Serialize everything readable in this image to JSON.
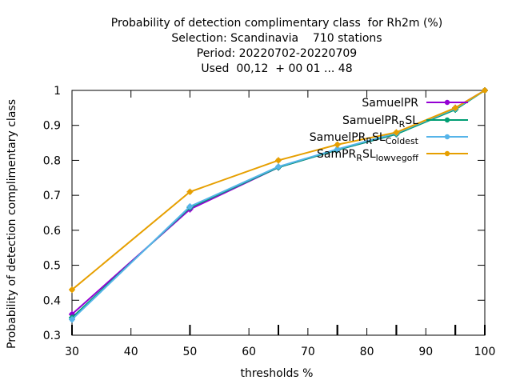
{
  "chart_data": {
    "type": "line",
    "title_lines": [
      "Probability of detection complimentary class  for Rh2m (%)",
      "Selection: Scandinavia    710 stations",
      "Period: 20220702-20220709",
      "Used  00,12  + 00 01 ... 48"
    ],
    "xlabel": "thresholds %",
    "ylabel": "Probability of detection complimentary class",
    "xlim": [
      30,
      100
    ],
    "ylim": [
      0.3,
      1.0
    ],
    "x_ticks": [
      30,
      40,
      50,
      60,
      70,
      80,
      90,
      100
    ],
    "y_ticks": [
      0.3,
      0.4,
      0.5,
      0.6,
      0.7,
      0.8,
      0.9,
      1.0
    ],
    "x_tick_labels": [
      "30",
      "40",
      "50",
      "60",
      "70",
      "80",
      "90",
      "100"
    ],
    "y_tick_labels": [
      "0.3",
      "0.4",
      "0.5",
      "0.6",
      "0.7",
      "0.8",
      "0.9",
      "1"
    ],
    "grid": false,
    "legend_position": "top-right",
    "x": [
      30,
      50,
      65,
      75,
      85,
      95,
      100
    ],
    "series": [
      {
        "name": "SamuelPR",
        "label_base": "SamuelPR",
        "label_sub": "",
        "label_tail": "",
        "color": "#9400d3",
        "marker": "filled-circle",
        "values": [
          0.36,
          0.66,
          0.78,
          0.83,
          0.875,
          0.95,
          1.0
        ]
      },
      {
        "name": "SamuelPR_RSL",
        "label_base": "SamuelPR",
        "label_sub": "R",
        "label_tail": "SL",
        "color": "#009e73",
        "marker": "filled-circle",
        "values": [
          0.35,
          0.665,
          0.78,
          0.83,
          0.875,
          0.945,
          1.0
        ]
      },
      {
        "name": "SamuelPR_RSL_Coldest",
        "label_base": "SamuelPR",
        "label_sub": "R",
        "label_tail": "SL",
        "label_sub2": "Coldest",
        "color": "#56b4e9",
        "marker": "filled-circle",
        "values": [
          0.345,
          0.668,
          0.782,
          0.832,
          0.878,
          0.948,
          1.0
        ]
      },
      {
        "name": "SamPR_RSL_lowvegoff",
        "label_base": "SamPR",
        "label_sub": "R",
        "label_tail": "SL",
        "label_sub2": "lowvegoff",
        "color": "#e69f00",
        "marker": "filled-circle",
        "values": [
          0.43,
          0.71,
          0.8,
          0.845,
          0.88,
          0.95,
          1.0
        ]
      }
    ]
  }
}
